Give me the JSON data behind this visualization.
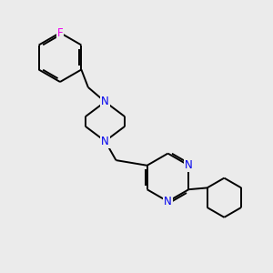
{
  "bg_color": "#ebebeb",
  "bond_color": "#000000",
  "atom_color_N": "#0000ee",
  "atom_color_F": "#ee00ee",
  "bond_width": 1.4,
  "font_size_atom": 8.5,
  "fig_size": [
    3.0,
    3.0
  ],
  "dpi": 100,
  "xlim": [
    0,
    10
  ],
  "ylim": [
    0,
    10
  ]
}
